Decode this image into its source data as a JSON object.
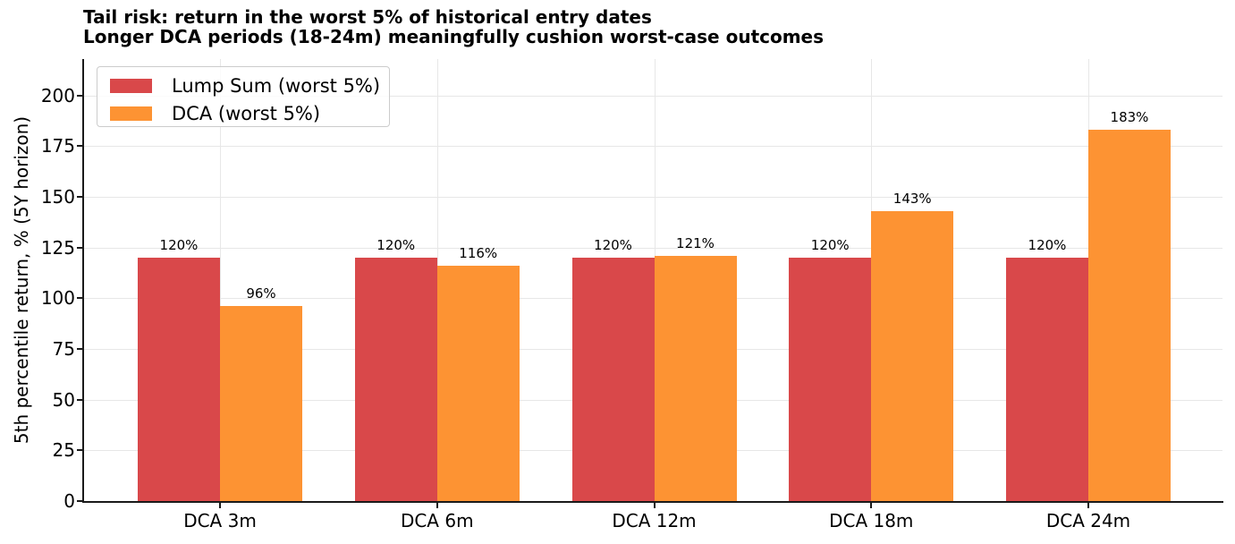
{
  "title": {
    "line1": "Tail risk: return in the worst 5% of historical entry dates",
    "line2": "Longer DCA periods (18-24m) meaningfully cushion worst-case outcomes"
  },
  "chart_data": {
    "type": "bar",
    "title": "Tail risk: return in the worst 5% of historical entry dates",
    "subtitle": "Longer DCA periods (18-24m) meaningfully cushion worst-case outcomes",
    "categories": [
      "DCA 3m",
      "DCA 6m",
      "DCA 12m",
      "DCA 18m",
      "DCA 24m"
    ],
    "series": [
      {
        "name": "Lump Sum (worst 5%)",
        "color": "#d9484a",
        "values": [
          120,
          120,
          120,
          120,
          120
        ]
      },
      {
        "name": "DCA (worst 5%)",
        "color": "#fd9333",
        "values": [
          96,
          116,
          121,
          143,
          183
        ]
      }
    ],
    "value_label_suffix": "%",
    "xlabel": "",
    "ylabel": "5th percentile return, % (5Y horizon)",
    "ylim": [
      0,
      218
    ],
    "yticks": [
      0,
      25,
      50,
      75,
      100,
      125,
      150,
      175,
      200
    ],
    "grid": true,
    "grid_color": "#e7e7e7",
    "legend_position": "upper left"
  },
  "colors": {
    "lump_sum": "#d9484a",
    "dca": "#fd9333",
    "axis": "#1a1a1a",
    "grid": "#e7e7e7",
    "background": "#ffffff",
    "text": "#000000"
  }
}
